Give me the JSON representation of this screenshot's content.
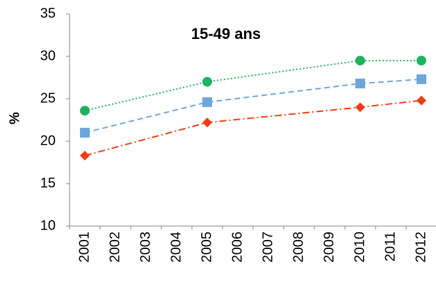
{
  "chart_data": {
    "type": "line",
    "title": "15-49 ans",
    "y_label": "%",
    "xticks": [
      2001,
      2002,
      2003,
      2004,
      2005,
      2006,
      2007,
      2008,
      2009,
      2010,
      2011,
      2012
    ],
    "xlim": [
      2000.5,
      2012.5
    ],
    "ylim": [
      10,
      35
    ],
    "yticks": [
      10,
      15,
      20,
      25,
      30,
      35
    ],
    "series": [
      {
        "color": "#1eb35f",
        "marker": "circle",
        "dash": "dotted",
        "x": [
          2001,
          2005,
          2010,
          2012
        ],
        "values": [
          23.6,
          27.0,
          29.5,
          29.5
        ]
      },
      {
        "color": "#6ea6dc",
        "marker": "square",
        "dash": "dashed",
        "x": [
          2001,
          2005,
          2010,
          2012
        ],
        "values": [
          21.0,
          24.6,
          26.8,
          27.3
        ]
      },
      {
        "color": "#f03c14",
        "marker": "diamond",
        "dash": "dashdot",
        "x": [
          2001,
          2005,
          2010,
          2012
        ],
        "values": [
          18.3,
          22.2,
          24.0,
          24.8
        ]
      }
    ]
  }
}
